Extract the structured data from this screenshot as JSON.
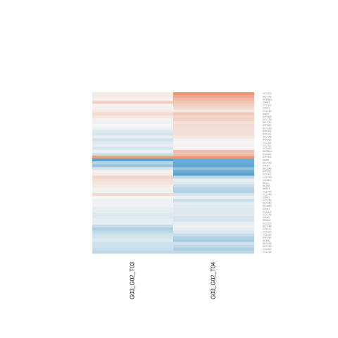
{
  "chart_data": {
    "type": "heatmap",
    "columns": [
      "G03_G02_T03",
      "G03_G02_T04"
    ],
    "rows": [
      "CCL3L3",
      "SLC7A1",
      "NCR3LG",
      "CIRH1",
      "CCL3L1",
      "CIRH1",
      "CCL7A1",
      "MAFF",
      "ATP1B3",
      "CCL7A2",
      "SLC7A7",
      "ATP1B1",
      "SLC1A3",
      "ATP1B1",
      "ATP1A1",
      "SLC7A6",
      "ATP2B1",
      "CCL3L4",
      "CCL3L1",
      "CCL4L2",
      "NCR3LG",
      "CCL2L2",
      "ATP1B2",
      "MAFF",
      "SLC7A6",
      "CIRH1",
      "SLC3A1",
      "ATP1B1",
      "CCL4L2",
      "CCL7A3",
      "CCL3L1",
      "SLC1",
      "NCR3L",
      "NR2F1",
      "CCL7A1",
      "CCL7A3",
      "CIRH1",
      "CCL3A1",
      "SLC2A2",
      "SLC3A3",
      "CIRH1",
      "CCL4L3",
      "CCL7A1",
      "CIRH1",
      "PRUN1",
      "CCL3L2",
      "SLC7A6",
      "CCL1L1",
      "CCL4L3",
      "CCL3L3",
      "ATP1B1",
      "NCR3L",
      "SLC4A2",
      "SLC7A3",
      "CCL3L2",
      "CCL7A1"
    ],
    "highlighted_rows": [
      22,
      23
    ],
    "values": [
      [
        0.1,
        0.9
      ],
      [
        0.1,
        0.7
      ],
      [
        0.05,
        0.55
      ],
      [
        0.35,
        0.45
      ],
      [
        0.05,
        0.35
      ],
      [
        0.05,
        0.25
      ],
      [
        0.1,
        0.15
      ],
      [
        0.25,
        0.4
      ],
      [
        0.15,
        0.3
      ],
      [
        0.05,
        0.35
      ],
      [
        -0.05,
        0.2
      ],
      [
        0.0,
        0.25
      ],
      [
        -0.05,
        0.2
      ],
      [
        -0.15,
        0.2
      ],
      [
        -0.2,
        0.2
      ],
      [
        -0.1,
        0.15
      ],
      [
        -0.25,
        0.05
      ],
      [
        -0.15,
        0.0
      ],
      [
        -0.1,
        0.05
      ],
      [
        -0.2,
        0.0
      ],
      [
        -0.05,
        0.5
      ],
      [
        -0.25,
        0.45
      ],
      [
        0.8,
        0.85
      ],
      [
        -1.0,
        -0.9
      ],
      [
        -0.4,
        -0.9
      ],
      [
        -0.6,
        -0.95
      ],
      [
        -0.2,
        -0.65
      ],
      [
        0.05,
        -0.9
      ],
      [
        0.1,
        -1.0
      ],
      [
        0.3,
        -0.35
      ],
      [
        0.2,
        -0.1
      ],
      [
        0.15,
        -0.15
      ],
      [
        0.1,
        -0.3
      ],
      [
        0.05,
        -0.4
      ],
      [
        -0.05,
        -0.45
      ],
      [
        0.25,
        -0.2
      ],
      [
        0.0,
        -0.05
      ],
      [
        -0.05,
        -0.3
      ],
      [
        -0.05,
        -0.1
      ],
      [
        -0.05,
        -0.15
      ],
      [
        -0.1,
        -0.15
      ],
      [
        -0.1,
        -0.15
      ],
      [
        -0.15,
        -0.15
      ],
      [
        -0.15,
        -0.2
      ],
      [
        -0.1,
        -0.2
      ],
      [
        -0.1,
        -0.1
      ],
      [
        -0.3,
        -0.05
      ],
      [
        -0.45,
        -0.1
      ],
      [
        -0.35,
        -0.15
      ],
      [
        -0.25,
        -0.3
      ],
      [
        -0.2,
        -0.45
      ],
      [
        -0.15,
        -0.5
      ],
      [
        -0.25,
        -0.25
      ],
      [
        -0.25,
        -0.35
      ],
      [
        -0.3,
        -0.45
      ],
      [
        -0.35,
        -0.35
      ]
    ],
    "color_scale": {
      "low": "#5ba3cf",
      "mid": "#f5f5f5",
      "high": "#ea8763"
    },
    "highlight_color": "#28a745",
    "title": "",
    "xlabel": "",
    "ylabel": ""
  }
}
